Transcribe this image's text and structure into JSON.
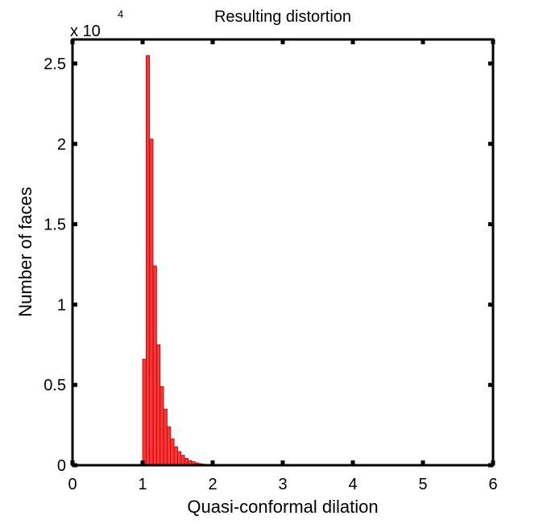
{
  "chart_data": {
    "type": "bar",
    "title": "Resulting distortion",
    "xlabel": "Quasi-conformal dilation",
    "ylabel": "Number of faces",
    "y_exponent_label": "x 10",
    "y_exponent": "4",
    "xlim": [
      0,
      6
    ],
    "ylim": [
      0,
      26500
    ],
    "x_ticks": [
      0,
      1,
      2,
      3,
      4,
      5,
      6
    ],
    "x_tick_labels": [
      "0",
      "1",
      "2",
      "3",
      "4",
      "5",
      "6"
    ],
    "y_ticks": [
      0,
      5000,
      10000,
      15000,
      20000,
      25000
    ],
    "y_tick_labels": [
      "0",
      "0.5",
      "1",
      "1.5",
      "2",
      "2.5"
    ],
    "grid": false,
    "bar_color": "#ff3333",
    "bar_edge_color": "#a01010",
    "bin_width": 0.05,
    "bin_centers": [
      1.025,
      1.075,
      1.125,
      1.175,
      1.225,
      1.275,
      1.325,
      1.375,
      1.425,
      1.475,
      1.525,
      1.575,
      1.625,
      1.675,
      1.725,
      1.775,
      1.825,
      1.875,
      1.925
    ],
    "values": [
      6600,
      25500,
      20300,
      12400,
      7500,
      4900,
      3500,
      2400,
      1650,
      1150,
      850,
      620,
      430,
      300,
      220,
      150,
      100,
      70,
      40
    ]
  }
}
